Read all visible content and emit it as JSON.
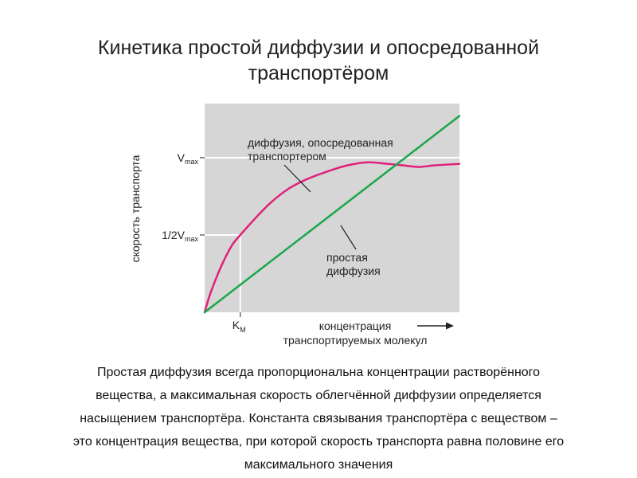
{
  "title": {
    "lines": [
      "Кинетика простой диффузии и опосредованной",
      "транспортёром"
    ]
  },
  "chart_data": {
    "type": "line",
    "ylabel": "скорость транспорта",
    "xlabel_lines": [
      "концентрация",
      "транспортируемых молекул"
    ],
    "x_ticks": [
      {
        "value": 0.14,
        "label": "K",
        "sub": "M"
      }
    ],
    "y_ticks": [
      {
        "value": 1.0,
        "label": "V",
        "sub": "max"
      },
      {
        "value": 0.5,
        "label": "1/2V",
        "sub": "max"
      }
    ],
    "xlim": [
      0,
      1
    ],
    "ylim": [
      0,
      1.35
    ],
    "grid": false,
    "series": [
      {
        "name": "mediated",
        "color": "#e0207a",
        "points": [
          [
            0,
            0
          ],
          [
            0.02,
            0.11
          ],
          [
            0.05,
            0.24
          ],
          [
            0.08,
            0.35
          ],
          [
            0.11,
            0.44
          ],
          [
            0.14,
            0.5
          ],
          [
            0.2,
            0.61
          ],
          [
            0.26,
            0.71
          ],
          [
            0.33,
            0.8
          ],
          [
            0.4,
            0.86
          ],
          [
            0.48,
            0.91
          ],
          [
            0.56,
            0.95
          ],
          [
            0.64,
            0.97
          ],
          [
            0.72,
            0.96
          ],
          [
            0.78,
            0.95
          ],
          [
            0.84,
            0.94
          ],
          [
            0.9,
            0.95
          ],
          [
            1.0,
            0.96
          ]
        ]
      },
      {
        "name": "simple",
        "color": "#1aa64a",
        "points": [
          [
            0,
            0
          ],
          [
            1.0,
            1.27
          ]
        ]
      }
    ],
    "annotations": [
      {
        "lines": [
          "диффузия, опосредованная",
          "транспортером"
        ],
        "series": "mediated"
      },
      {
        "lines": [
          "простая",
          "диффузия"
        ],
        "series": "simple"
      }
    ],
    "colors": {
      "plot_bg": "#d6d6d6",
      "ref_lines": "#ffffff"
    }
  },
  "caption": {
    "lines": [
      "Простая диффузия всегда пропорциональна концентрации растворённого",
      "вещества, а максимальная скорость облегчённой диффузии определяется",
      "насыщением транспортёра. Константа связывания транспортёра с веществом –",
      "это концентрация вещества, при которой скорость транспорта равна половине его",
      "максимального значения"
    ]
  }
}
